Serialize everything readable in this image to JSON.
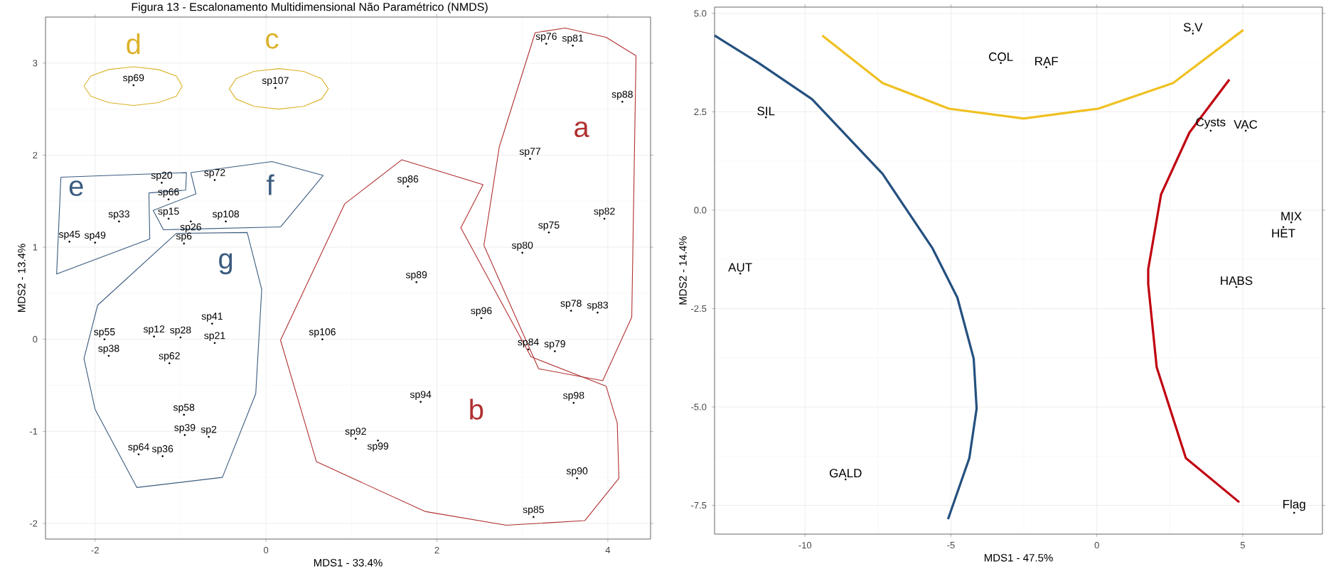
{
  "chart_data": [
    {
      "type": "scatter",
      "title": "Figura 13 - Escalonamento Multidimensional Não Paramétrico (NMDS)",
      "xlabel": "MDS1 - 33.4%",
      "ylabel": "MDS2 - 13.4%",
      "xlim": [
        -2.58,
        4.5
      ],
      "ylim": [
        -2.17,
        3.5
      ],
      "xticks": [
        -2,
        0,
        2,
        4
      ],
      "yticks": [
        -2,
        -1,
        0,
        1,
        2,
        3
      ],
      "grid": true,
      "series": [
        {
          "type": "line",
          "name": "a",
          "color": "#b03030",
          "x": [
            2.55,
            2.73,
            3.15,
            3.5,
            3.98,
            4.33
          ],
          "values": [
            1.02,
            2.09,
            3.33,
            3.38,
            3.28,
            3.08
          ]
        },
        {
          "type": "line",
          "color": "#b03030",
          "x": [
            4.33,
            4.28,
            3.94,
            3.19,
            2.55
          ],
          "values": [
            3.08,
            0.24,
            -0.45,
            -0.32,
            1.02
          ]
        },
        {
          "type": "line",
          "name": "b",
          "color": "#b03030",
          "x": [
            0.17,
            0.92,
            1.59,
            2.54,
            2.28,
            3.1,
            3.98
          ],
          "values": [
            -0.01,
            1.47,
            1.95,
            1.68,
            1.21,
            -0.19,
            -0.51
          ]
        },
        {
          "type": "line",
          "color": "#b03030",
          "x": [
            3.98,
            4.11,
            4.13,
            3.73,
            2.81,
            1.86,
            0.59,
            0.17
          ],
          "values": [
            -0.51,
            -0.91,
            -1.51,
            -1.97,
            -2.02,
            -1.87,
            -1.33,
            -0.01
          ]
        },
        {
          "type": "line",
          "name": "c",
          "color": "#dcb22a",
          "x": [
            0.73,
            0.65,
            0.44,
            0.15,
            -0.14,
            -0.35,
            -0.43
          ],
          "values": [
            2.72,
            2.83,
            2.91,
            2.94,
            2.91,
            2.83,
            2.72
          ]
        },
        {
          "type": "line",
          "color": "#dcb22a",
          "x": [
            -0.43,
            -0.35,
            -0.14,
            0.15,
            0.44,
            0.65,
            0.73
          ],
          "values": [
            2.72,
            2.61,
            2.53,
            2.5,
            2.53,
            2.61,
            2.72
          ]
        },
        {
          "type": "line",
          "name": "d",
          "color": "#dcb22a",
          "x": [
            -0.98,
            -1.05,
            -1.26,
            -1.55,
            -1.84,
            -2.05,
            -2.13
          ],
          "values": [
            2.75,
            2.86,
            2.93,
            2.96,
            2.93,
            2.86,
            2.75
          ]
        },
        {
          "type": "line",
          "color": "#dcb22a",
          "x": [
            -2.13,
            -2.05,
            -1.84,
            -1.55,
            -1.26,
            -1.05,
            -0.98
          ],
          "values": [
            2.75,
            2.64,
            2.57,
            2.54,
            2.57,
            2.64,
            2.75
          ]
        },
        {
          "type": "line",
          "name": "e",
          "color": "#3b5b7f",
          "x": [
            -2.4,
            -0.93,
            -0.94,
            -1.37
          ],
          "values": [
            1.76,
            1.81,
            1.62,
            1.59
          ]
        },
        {
          "type": "line",
          "color": "#3b5b7f",
          "x": [
            -1.37,
            -1.36,
            -2.45,
            -2.4
          ],
          "values": [
            1.59,
            1.09,
            0.71,
            1.76
          ]
        },
        {
          "type": "line",
          "name": "f",
          "color": "#3b5b7f",
          "x": [
            -0.88,
            0.07,
            0.67,
            0.17
          ],
          "values": [
            1.81,
            1.93,
            1.78,
            1.22
          ]
        },
        {
          "type": "line",
          "color": "#3b5b7f",
          "x": [
            0.17,
            -1.2,
            -1.32,
            -0.82,
            -0.88
          ],
          "values": [
            1.22,
            1.19,
            1.4,
            1.58,
            1.81
          ]
        },
        {
          "type": "line",
          "name": "g",
          "color": "#3b5b7f",
          "x": [
            -1.05,
            -0.22,
            -0.05,
            -0.12,
            -0.51
          ],
          "values": [
            1.15,
            1.16,
            0.54,
            -0.59,
            -1.5
          ]
        },
        {
          "type": "line",
          "color": "#3b5b7f",
          "x": [
            -0.51,
            -1.51,
            -2.0,
            -2.13,
            -1.97,
            -1.05
          ],
          "values": [
            -1.5,
            -1.61,
            -0.76,
            -0.21,
            0.37,
            1.15
          ]
        },
        {
          "color": "#000000",
          "marker": "circle",
          "x": [
            -1.55,
            0.11,
            -1.22,
            -0.6,
            -1.14,
            -1.72,
            -1.14,
            -0.88,
            -0.47,
            -2.3,
            -2.0,
            -0.96,
            -1.89,
            -1.31,
            -1.0,
            -0.63,
            -0.6,
            -1.84,
            -1.13,
            -0.96,
            -0.95,
            -0.67,
            -1.49,
            -1.21,
            0.66,
            3.28,
            3.59,
            4.17,
            3.09,
            1.66,
            3.96,
            3.31,
            3.0,
            1.76,
            3.57,
            3.88,
            2.52,
            3.07,
            3.38,
            1.81,
            3.6,
            1.05,
            1.31,
            3.64,
            3.13
          ],
          "values": [
            2.76,
            2.73,
            1.7,
            1.73,
            1.52,
            1.28,
            1.31,
            1.28,
            1.28,
            1.06,
            1.05,
            1.04,
            0.0,
            0.03,
            0.02,
            0.17,
            -0.04,
            -0.18,
            -0.26,
            -0.82,
            -1.04,
            -1.06,
            -1.25,
            -1.27,
            0.0,
            3.21,
            3.19,
            2.58,
            1.96,
            1.66,
            1.31,
            1.16,
            0.94,
            0.62,
            0.31,
            0.29,
            0.23,
            -0.11,
            -0.13,
            -0.68,
            -0.69,
            -1.08,
            -1.1,
            -1.51,
            -1.93
          ],
          "value_labels": [
            "sp69",
            "sp107",
            "sp20",
            "sp72",
            "sp66",
            "sp33",
            "sp15",
            "sp26",
            "sp108",
            "sp45",
            "sp49",
            "sp6",
            "sp55",
            "sp12",
            "sp28",
            "sp41",
            "sp21",
            "sp38",
            "sp62",
            "sp58",
            "sp39",
            "sp2",
            "sp64",
            "sp36",
            "sp106",
            "sp76",
            "sp81",
            "sp88",
            "sp77",
            "sp86",
            "sp82",
            "sp75",
            "sp80",
            "sp89",
            "sp78",
            "sp83",
            "sp96",
            "sp84",
            "sp79",
            "sp94",
            "sp98",
            "sp92",
            "sp99",
            "sp90",
            "sp85"
          ]
        }
      ]
    },
    {
      "type": "scatter",
      "xlabel": "MDS1 - 47.5%",
      "ylabel": "MDS2 - 14.4%",
      "xlim": [
        -13.1,
        7.73
      ],
      "ylim": [
        -8.23,
        5.16
      ],
      "xticks": [
        -10,
        -5,
        0,
        5
      ],
      "yticks": [
        {
          "value": -7.5,
          "label": "-7.5"
        },
        {
          "value": -5,
          "label": "-5.0"
        },
        {
          "value": -2.5,
          "label": "-2.5"
        },
        {
          "value": 0,
          "label": "0.0"
        },
        {
          "value": 2.5,
          "label": "2.5"
        },
        {
          "value": 5,
          "label": "5.0"
        }
      ],
      "grid": true,
      "series": [
        {
          "type": "line",
          "color": "#24507f",
          "x": [
            -13.1,
            -11.61,
            -9.76,
            -7.34,
            -5.63,
            -4.78,
            -4.22,
            -4.12,
            -4.37,
            -5.1
          ],
          "values": [
            4.44,
            3.75,
            2.82,
            0.92,
            -0.97,
            -2.22,
            -3.77,
            -5.04,
            -6.3,
            -7.85
          ]
        },
        {
          "type": "line",
          "color": "#f0c020",
          "x": [
            -9.41,
            -7.34,
            -5.07,
            -2.51,
            0.05,
            2.61,
            5.02
          ],
          "values": [
            4.44,
            3.23,
            2.58,
            2.33,
            2.58,
            3.23,
            4.58
          ]
        },
        {
          "type": "line",
          "color": "#c00010",
          "x": [
            4.54,
            3.17,
            2.2,
            1.76,
            1.76,
            2.05,
            3.05,
            4.88
          ],
          "values": [
            3.32,
            1.97,
            0.4,
            -1.5,
            -1.88,
            -3.99,
            -6.3,
            -7.42
          ]
        },
        {
          "color": "#000000",
          "marker": "circle",
          "x": [
            3.29,
            -3.29,
            -1.73,
            -11.34,
            3.9,
            5.1,
            6.66,
            6.39,
            -12.22,
            4.78,
            -8.61,
            6.76
          ],
          "values": [
            4.49,
            3.74,
            3.63,
            2.36,
            2.02,
            2.02,
            -0.31,
            -0.43,
            -1.61,
            -1.95,
            -6.84,
            -7.69
          ],
          "value_labels": [
            "S.V",
            "COL",
            "RAF",
            "SIL",
            "Cysts",
            "VAC",
            "MIX",
            "HET",
            "AUT",
            "HABS",
            "GALD",
            "Flag"
          ]
        }
      ]
    }
  ]
}
